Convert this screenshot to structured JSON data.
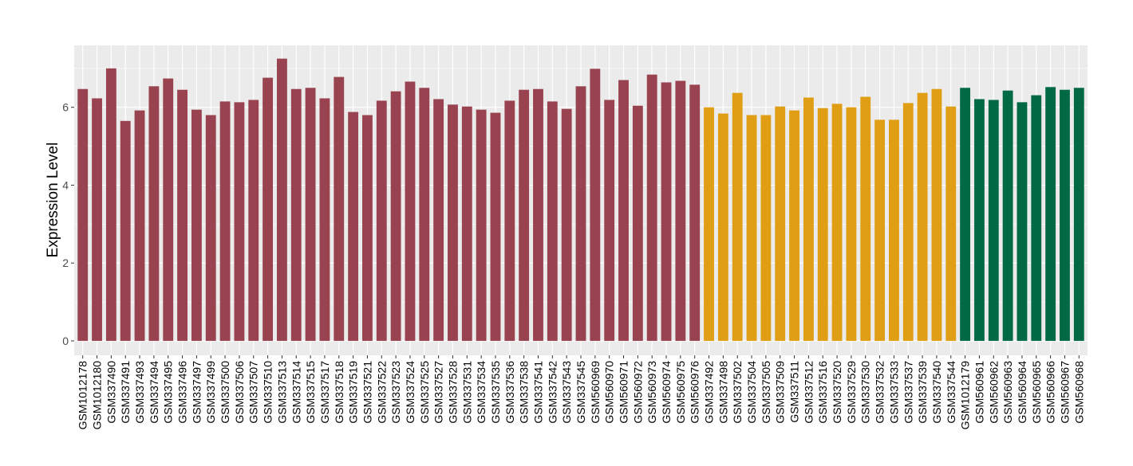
{
  "chart_data": {
    "type": "bar",
    "title": "",
    "xlabel": "",
    "ylabel": "Expression Level",
    "ylim": [
      -0.37,
      7.59
    ],
    "yticks": [
      0,
      2,
      4,
      6
    ],
    "grid": true,
    "legend": "none",
    "group_colors": [
      "#9A4350",
      "#E09E14",
      "#016A44"
    ],
    "categories": [
      "GSM1012178",
      "GSM1012180",
      "GSM337490",
      "GSM337491",
      "GSM337493",
      "GSM337494",
      "GSM337495",
      "GSM337496",
      "GSM337497",
      "GSM337499",
      "GSM337500",
      "GSM337506",
      "GSM337507",
      "GSM337510",
      "GSM337513",
      "GSM337514",
      "GSM337515",
      "GSM337517",
      "GSM337518",
      "GSM337519",
      "GSM337521",
      "GSM337522",
      "GSM337523",
      "GSM337524",
      "GSM337525",
      "GSM337527",
      "GSM337528",
      "GSM337531",
      "GSM337534",
      "GSM337535",
      "GSM337536",
      "GSM337538",
      "GSM337541",
      "GSM337542",
      "GSM337543",
      "GSM337545",
      "GSM560969",
      "GSM560970",
      "GSM560971",
      "GSM560972",
      "GSM560973",
      "GSM560974",
      "GSM560975",
      "GSM560976",
      "GSM337492",
      "GSM337498",
      "GSM337502",
      "GSM337504",
      "GSM337505",
      "GSM337509",
      "GSM337511",
      "GSM337512",
      "GSM337516",
      "GSM337520",
      "GSM337529",
      "GSM337530",
      "GSM337532",
      "GSM337533",
      "GSM337537",
      "GSM337539",
      "GSM337540",
      "GSM337544",
      "GSM1012179",
      "GSM560961",
      "GSM560962",
      "GSM560963",
      "GSM560964",
      "GSM560965",
      "GSM560966",
      "GSM560967",
      "GSM560968"
    ],
    "values": [
      6.47,
      6.23,
      7.0,
      5.65,
      5.92,
      6.54,
      6.74,
      6.45,
      5.94,
      5.8,
      6.15,
      6.13,
      6.19,
      6.76,
      7.25,
      6.47,
      6.5,
      6.23,
      6.78,
      5.88,
      5.8,
      6.17,
      6.41,
      6.66,
      6.5,
      6.21,
      6.07,
      6.02,
      5.94,
      5.86,
      6.17,
      6.45,
      6.47,
      6.15,
      5.96,
      6.54,
      6.99,
      6.19,
      6.7,
      6.04,
      6.84,
      6.64,
      6.68,
      6.58,
      6.0,
      5.84,
      6.37,
      5.8,
      5.8,
      6.02,
      5.92,
      6.25,
      5.98,
      6.09,
      6.0,
      6.27,
      5.68,
      5.68,
      6.11,
      6.37,
      6.47,
      6.02,
      6.5,
      6.21,
      6.19,
      6.43,
      6.13,
      6.31,
      6.52,
      6.45,
      6.5
    ],
    "groups": [
      0,
      0,
      0,
      0,
      0,
      0,
      0,
      0,
      0,
      0,
      0,
      0,
      0,
      0,
      0,
      0,
      0,
      0,
      0,
      0,
      0,
      0,
      0,
      0,
      0,
      0,
      0,
      0,
      0,
      0,
      0,
      0,
      0,
      0,
      0,
      0,
      0,
      0,
      0,
      0,
      0,
      0,
      0,
      0,
      1,
      1,
      1,
      1,
      1,
      1,
      1,
      1,
      1,
      1,
      1,
      1,
      1,
      1,
      1,
      1,
      1,
      1,
      2,
      2,
      2,
      2,
      2,
      2,
      2,
      2,
      2
    ]
  }
}
